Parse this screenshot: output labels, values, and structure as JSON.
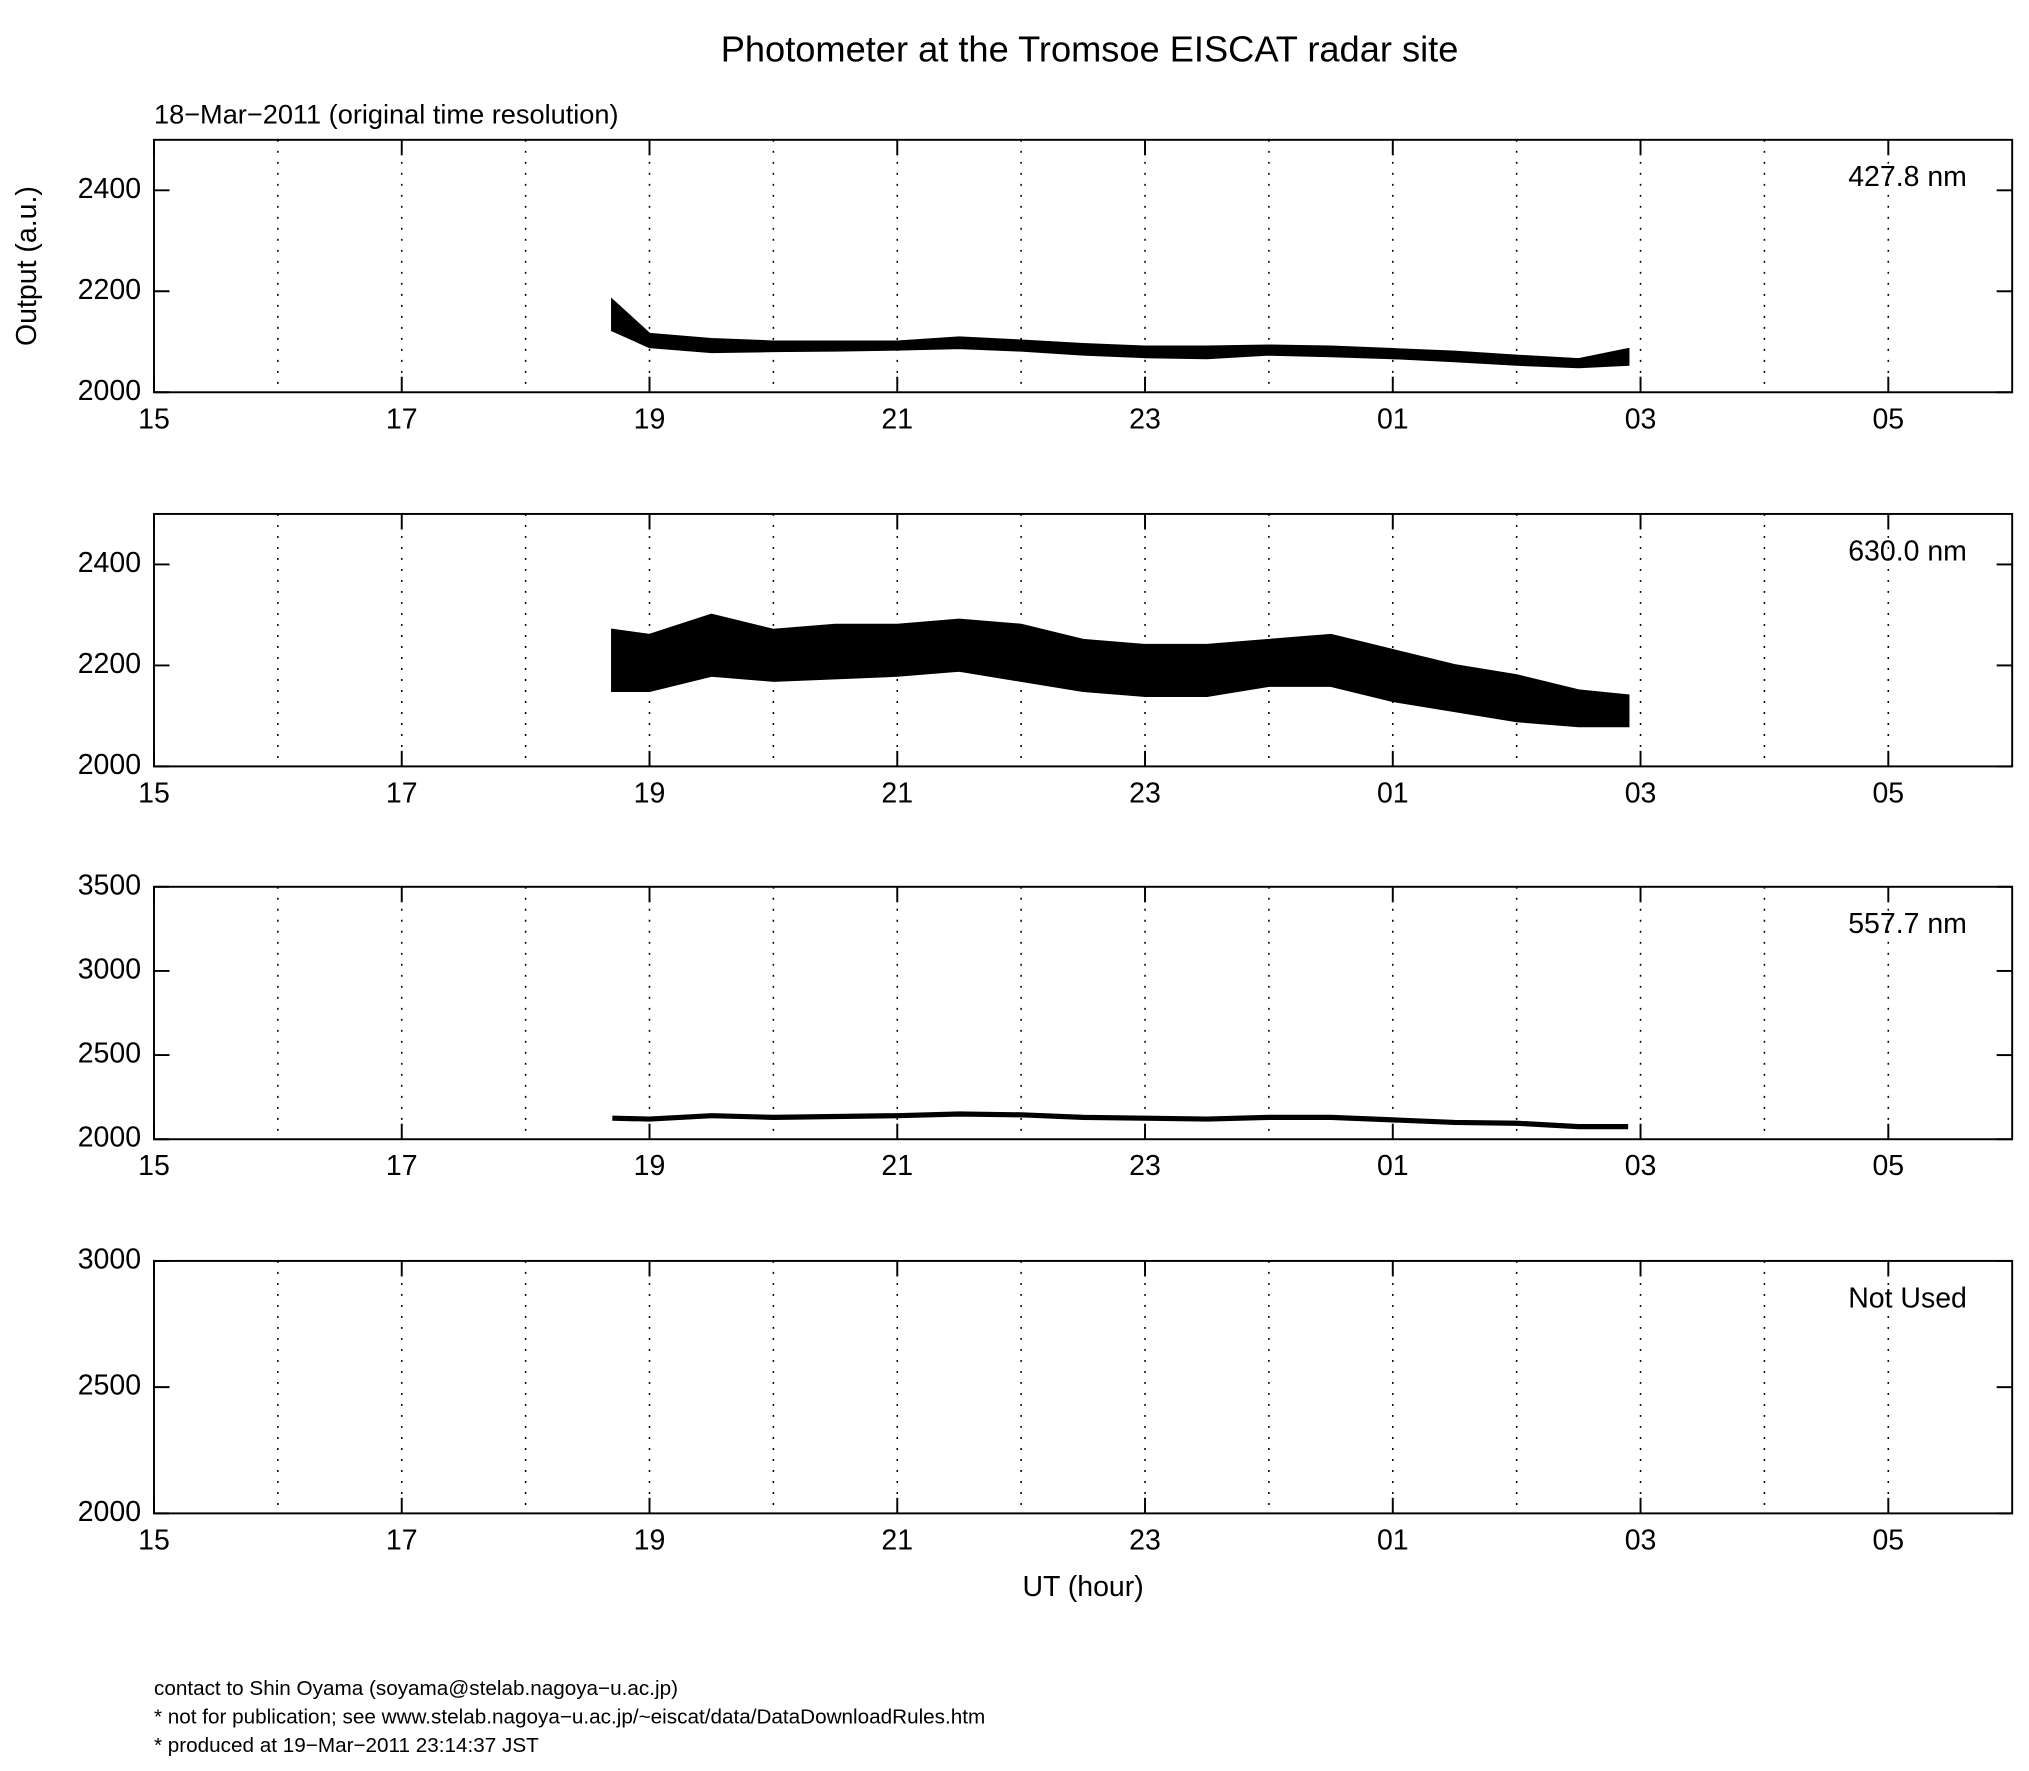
{
  "title": "Photometer at the Tromsoe EISCAT radar site",
  "subtitle": "18−Mar−2011 (original time resolution)",
  "footer": [
    "contact to Shin Oyama (soyama@stelab.nagoya−u.ac.jp)",
    "* not for publication; see www.stelab.nagoya−u.ac.jp/~eiscat/data/DataDownloadRules.htm",
    "* produced at 19−Mar−2011 23:14:37 JST"
  ],
  "chart_data": [
    {
      "type": "band",
      "label": "427.8 nm",
      "ylabel": "Output (a.u.)",
      "color": "#000000",
      "xlim": [
        15,
        30
      ],
      "xticks": [
        15,
        17,
        19,
        21,
        23,
        {
          "value": 25,
          "label": "01"
        },
        {
          "value": 27,
          "label": "03"
        },
        {
          "value": 29,
          "label": "05"
        }
      ],
      "xgrid": [
        16,
        17,
        18,
        19,
        20,
        21,
        22,
        23,
        24,
        25,
        26,
        27,
        28,
        29
      ],
      "ylim": [
        2000,
        2500
      ],
      "yticks": [
        2000,
        2200,
        2400
      ],
      "x": [
        18.7,
        19,
        19.5,
        20,
        20.5,
        21,
        21.5,
        22,
        22.5,
        23,
        23.5,
        24,
        24.5,
        25,
        25.5,
        26,
        26.5,
        26.9
      ],
      "upper": [
        2182,
        2115,
        2105,
        2100,
        2100,
        2100,
        2108,
        2102,
        2095,
        2090,
        2090,
        2092,
        2090,
        2085,
        2080,
        2072,
        2065,
        2085
      ],
      "lower": [
        2123,
        2090,
        2080,
        2082,
        2083,
        2085,
        2088,
        2083,
        2075,
        2070,
        2068,
        2075,
        2072,
        2068,
        2062,
        2055,
        2050,
        2055
      ]
    },
    {
      "type": "band",
      "label": "630.0 nm",
      "color": "#000000",
      "xlim": [
        15,
        30
      ],
      "xticks": [
        15,
        17,
        19,
        21,
        23,
        {
          "value": 25,
          "label": "01"
        },
        {
          "value": 27,
          "label": "03"
        },
        {
          "value": 29,
          "label": "05"
        }
      ],
      "xgrid": [
        16,
        17,
        18,
        19,
        20,
        21,
        22,
        23,
        24,
        25,
        26,
        27,
        28,
        29
      ],
      "ylim": [
        2000,
        2500
      ],
      "yticks": [
        2000,
        2200,
        2400
      ],
      "x": [
        18.7,
        19,
        19.5,
        20,
        20.5,
        21,
        21.5,
        22,
        22.5,
        23,
        23.5,
        24,
        24.5,
        25,
        25.5,
        26,
        26.5,
        26.9
      ],
      "upper": [
        2270,
        2260,
        2300,
        2270,
        2280,
        2280,
        2290,
        2280,
        2250,
        2240,
        2240,
        2250,
        2260,
        2230,
        2200,
        2180,
        2150,
        2140
      ],
      "lower": [
        2150,
        2150,
        2180,
        2170,
        2175,
        2180,
        2190,
        2170,
        2150,
        2140,
        2140,
        2160,
        2160,
        2130,
        2110,
        2090,
        2080,
        2080
      ]
    },
    {
      "type": "line",
      "label": "557.7 nm",
      "color": "#000000",
      "xlim": [
        15,
        30
      ],
      "xticks": [
        15,
        17,
        19,
        21,
        23,
        {
          "value": 25,
          "label": "01"
        },
        {
          "value": 27,
          "label": "03"
        },
        {
          "value": 29,
          "label": "05"
        }
      ],
      "xgrid": [
        16,
        17,
        18,
        19,
        20,
        21,
        22,
        23,
        24,
        25,
        26,
        27,
        28,
        29
      ],
      "ylim": [
        2000,
        3500
      ],
      "yticks": [
        2000,
        2500,
        3000,
        3500
      ],
      "x": [
        18.7,
        19,
        19.5,
        20,
        20.5,
        21,
        21.5,
        22,
        22.5,
        23,
        23.5,
        24,
        24.5,
        25,
        25.5,
        26,
        26.5,
        26.9
      ],
      "values": [
        2125,
        2120,
        2140,
        2130,
        2135,
        2140,
        2150,
        2145,
        2130,
        2125,
        2120,
        2130,
        2130,
        2115,
        2100,
        2095,
        2075,
        2075
      ]
    },
    {
      "type": "line",
      "label": "Not Used",
      "xlabel": "UT (hour)",
      "color": "#000000",
      "xlim": [
        15,
        30
      ],
      "xticks": [
        15,
        17,
        19,
        21,
        23,
        {
          "value": 25,
          "label": "01"
        },
        {
          "value": 27,
          "label": "03"
        },
        {
          "value": 29,
          "label": "05"
        }
      ],
      "xgrid": [
        16,
        17,
        18,
        19,
        20,
        21,
        22,
        23,
        24,
        25,
        26,
        27,
        28,
        29
      ],
      "ylim": [
        2000,
        3000
      ],
      "yticks": [
        2000,
        2500,
        3000
      ],
      "x": [],
      "values": []
    }
  ]
}
